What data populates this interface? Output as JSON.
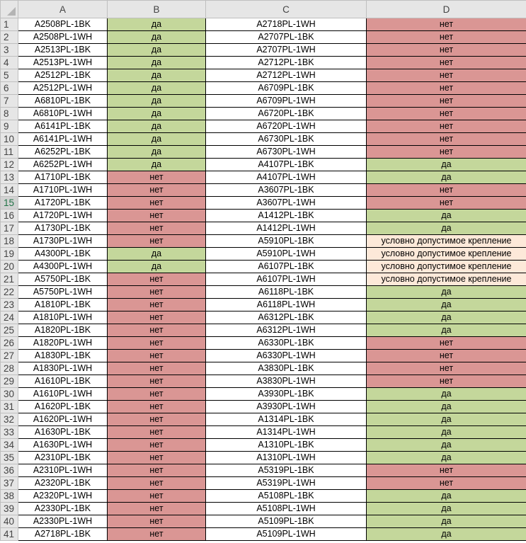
{
  "columns": [
    "A",
    "B",
    "C",
    "D"
  ],
  "colors": {
    "yes": "#c4d79b",
    "no": "#da9694",
    "conditional": "#fde9d9"
  },
  "selected_row": 15,
  "rows": [
    [
      "A2508PL-1BK",
      "да",
      "A2718PL-1WH",
      "нет"
    ],
    [
      "A2508PL-1WH",
      "да",
      "A2707PL-1BK",
      "нет"
    ],
    [
      "A2513PL-1BK",
      "да",
      "A2707PL-1WH",
      "нет"
    ],
    [
      "A2513PL-1WH",
      "да",
      "A2712PL-1BK",
      "нет"
    ],
    [
      "A2512PL-1BK",
      "да",
      "A2712PL-1WH",
      "нет"
    ],
    [
      "A2512PL-1WH",
      "да",
      "A6709PL-1BK",
      "нет"
    ],
    [
      "A6810PL-1BK",
      "да",
      "A6709PL-1WH",
      "нет"
    ],
    [
      "A6810PL-1WH",
      "да",
      "A6720PL-1BK",
      "нет"
    ],
    [
      "A6141PL-1BK",
      "да",
      "A6720PL-1WH",
      "нет"
    ],
    [
      "A6141PL-1WH",
      "да",
      "A6730PL-1BK",
      "нет"
    ],
    [
      "A6252PL-1BK",
      "да",
      "A6730PL-1WH",
      "нет"
    ],
    [
      "A6252PL-1WH",
      "да",
      "A4107PL-1BK",
      "да"
    ],
    [
      "A1710PL-1BK",
      "нет",
      "A4107PL-1WH",
      "да"
    ],
    [
      "A1710PL-1WH",
      "нет",
      "A3607PL-1BK",
      "нет"
    ],
    [
      "A1720PL-1BK",
      "нет",
      "A3607PL-1WH",
      "нет"
    ],
    [
      "A1720PL-1WH",
      "нет",
      "A1412PL-1BK",
      "да"
    ],
    [
      "A1730PL-1BK",
      "нет",
      "A1412PL-1WH",
      "да"
    ],
    [
      "A1730PL-1WH",
      "нет",
      "A5910PL-1BK",
      "условно допустимое крепление"
    ],
    [
      "A4300PL-1BK",
      "да",
      "A5910PL-1WH",
      "условно допустимое крепление"
    ],
    [
      "A4300PL-1WH",
      "да",
      "A6107PL-1BK",
      "условно допустимое крепление"
    ],
    [
      "A5750PL-1BK",
      "нет",
      "A6107PL-1WH",
      "условно допустимое крепление"
    ],
    [
      "A5750PL-1WH",
      "нет",
      "A6118PL-1BK",
      "да"
    ],
    [
      "A1810PL-1BK",
      "нет",
      "A6118PL-1WH",
      "да"
    ],
    [
      "A1810PL-1WH",
      "нет",
      "A6312PL-1BK",
      "да"
    ],
    [
      "A1820PL-1BK",
      "нет",
      "A6312PL-1WH",
      "да"
    ],
    [
      "A1820PL-1WH",
      "нет",
      "A6330PL-1BK",
      "нет"
    ],
    [
      "A1830PL-1BK",
      "нет",
      "A6330PL-1WH",
      "нет"
    ],
    [
      "A1830PL-1WH",
      "нет",
      "A3830PL-1BK",
      "нет"
    ],
    [
      "A1610PL-1BK",
      "нет",
      "A3830PL-1WH",
      "нет"
    ],
    [
      "A1610PL-1WH",
      "нет",
      "A3930PL-1BK",
      "да"
    ],
    [
      "A1620PL-1BK",
      "нет",
      "A3930PL-1WH",
      "да"
    ],
    [
      "A1620PL-1WH",
      "нет",
      "A1314PL-1BK",
      "да"
    ],
    [
      "A1630PL-1BK",
      "нет",
      "A1314PL-1WH",
      "да"
    ],
    [
      "A1630PL-1WH",
      "нет",
      "A1310PL-1BK",
      "да"
    ],
    [
      "A2310PL-1BK",
      "нет",
      "A1310PL-1WH",
      "да"
    ],
    [
      "A2310PL-1WH",
      "нет",
      "A5319PL-1BK",
      "нет"
    ],
    [
      "A2320PL-1BK",
      "нет",
      "A5319PL-1WH",
      "нет"
    ],
    [
      "A2320PL-1WH",
      "нет",
      "A5108PL-1BK",
      "да"
    ],
    [
      "A2330PL-1BK",
      "нет",
      "A5108PL-1WH",
      "да"
    ],
    [
      "A2330PL-1WH",
      "нет",
      "A5109PL-1BK",
      "да"
    ],
    [
      "A2718PL-1BK",
      "нет",
      "A5109PL-1WH",
      "да"
    ]
  ]
}
